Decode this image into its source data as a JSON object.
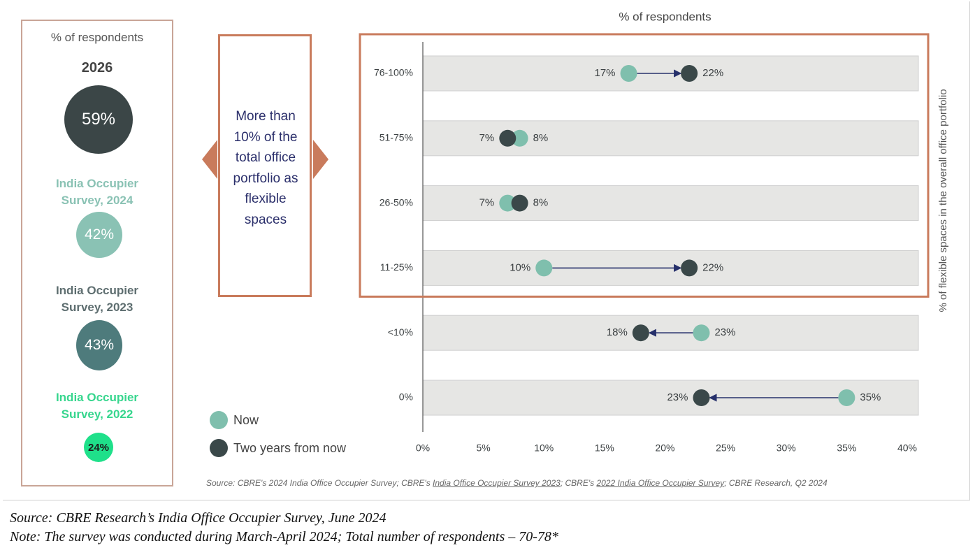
{
  "left_panel": {
    "header": "% of respondents",
    "year": "2026",
    "items": [
      {
        "label": "",
        "value": "59%",
        "color": "#3b4647",
        "text_color": "#ffffff"
      },
      {
        "label": "India Occupier Survey, 2024",
        "value": "42%",
        "color": "#8ac2b4",
        "text_color": "#ffffff",
        "label_color": "#8ac2b4"
      },
      {
        "label": "India Occupier Survey, 2023",
        "value": "43%",
        "color": "#4e7b7c",
        "text_color": "#ffffff",
        "label_color": "#5e6e70"
      },
      {
        "label": "India Occupier Survey, 2022",
        "value": "24%",
        "color": "#1fe08a",
        "text_color": "#1a1a1a",
        "label_color": "#37d68e"
      }
    ]
  },
  "callout": {
    "lines": [
      "More than",
      "10% of the",
      "total office",
      "portfolio as",
      "flexible",
      "spaces"
    ]
  },
  "legend": {
    "now_label": "Now",
    "future_label": "Two years from now"
  },
  "colors": {
    "now": "#7fbfad",
    "future": "#3a4849",
    "arrow": "#26306b",
    "highlight_border": "#c97b5c",
    "row_bg": "#e6e6e4"
  },
  "source_inner": {
    "prefix": "Source: CBRE's 2024 India Office Occupier Survey; CBRE's ",
    "link1": "India Office Occupier Survey 2023",
    "mid": "; CBRE's ",
    "link2": "2022 India Office Occupier Survey",
    "suffix": "; CBRE Research, Q2 2024"
  },
  "footer": {
    "source": "Source: CBRE Research’s India Office Occupier Survey, June 2024",
    "note": "Note: The survey was conducted during March-April 2024; Total number of respondents – 70-78*"
  },
  "chart_data": {
    "type": "dumbbell",
    "title": "% of respondents",
    "ylabel": "% of flexible spaces in the overall office portfolio",
    "categories": [
      "76-100%",
      "51-75%",
      "26-50%",
      "11-25%",
      "<10%",
      "0%"
    ],
    "series": [
      {
        "name": "Now",
        "values": [
          17,
          8,
          7,
          10,
          23,
          35
        ]
      },
      {
        "name": "Two years from now",
        "values": [
          22,
          7,
          8,
          22,
          18,
          23
        ]
      }
    ],
    "x_ticks": [
      "0%",
      "5%",
      "10%",
      "15%",
      "20%",
      "25%",
      "30%",
      "35%",
      "40%"
    ],
    "xlim": [
      0,
      40
    ],
    "highlighted_categories": [
      "76-100%",
      "51-75%",
      "26-50%",
      "11-25%"
    ],
    "legend_position": "bottom-left"
  }
}
